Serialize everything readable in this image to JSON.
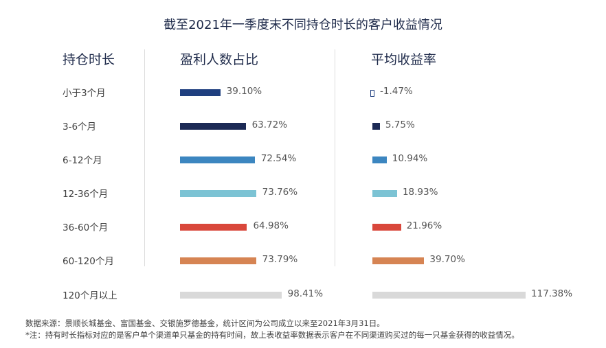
{
  "title": "截至2021年一季度末不同持仓时长的客户收益情况",
  "headers": {
    "holding": "持仓时长",
    "profit_ratio": "盈利人数占比",
    "avg_return": "平均收益率"
  },
  "chart_data": {
    "type": "bar",
    "title": "截至2021年一季度末不同持仓时长的客户收益情况",
    "categories": [
      "小于3个月",
      "3-6个月",
      "6-12个月",
      "12-36个月",
      "36-60个月",
      "60-120个月",
      "120个月以上"
    ],
    "category_colors": [
      "#1f3f7f",
      "#1c2a55",
      "#3c86c0",
      "#7cc3d4",
      "#d9473b",
      "#d68453",
      "#d9d9d9"
    ],
    "series": [
      {
        "name": "盈利人数占比",
        "values": [
          39.1,
          63.72,
          72.54,
          73.76,
          64.98,
          73.79,
          98.41
        ],
        "labels": [
          "39.10%",
          "63.72%",
          "72.54%",
          "73.76%",
          "64.98%",
          "73.79%",
          "98.41%"
        ]
      },
      {
        "name": "平均收益率",
        "values": [
          -1.47,
          5.75,
          10.94,
          18.93,
          21.96,
          39.7,
          117.38
        ],
        "labels": [
          "-1.47%",
          "5.75%",
          "10.94%",
          "18.93%",
          "21.96%",
          "39.70%",
          "117.38%"
        ]
      }
    ],
    "unit": "%"
  },
  "notes": {
    "source": "数据来源：景顺长城基金、富国基金、交银施罗德基金，统计区间为公司成立以来至2021年3月31日。",
    "footnote": "*注：持有时长指标对应的是客户单个渠道单只基金的持有时间，故上表收益率数据表示客户在不同渠道购买过的每一只基金获得的收益情况。"
  }
}
